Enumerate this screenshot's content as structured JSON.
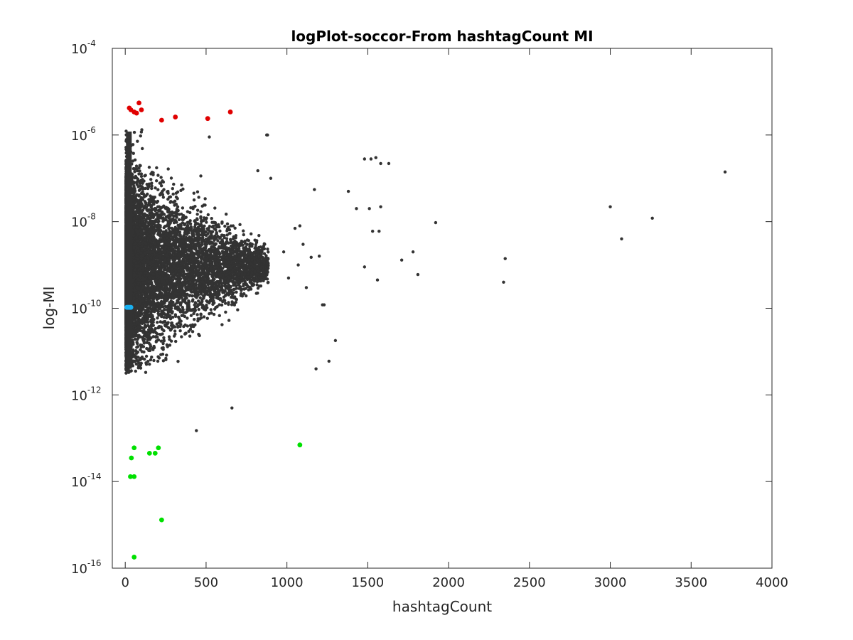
{
  "chart_data": {
    "type": "scatter",
    "title": "logPlot-soccor-From hashtagCount MI",
    "xlabel": "hashtagCount",
    "ylabel": "log-MI",
    "xlim": [
      -80,
      4000
    ],
    "ylim": [
      1e-16,
      0.0001
    ],
    "yscale": "log",
    "grid": false,
    "legend": "none",
    "x_ticks": [
      {
        "value": 0,
        "label": "0"
      },
      {
        "value": 500,
        "label": "500"
      },
      {
        "value": 1000,
        "label": "1000"
      },
      {
        "value": 1500,
        "label": "1500"
      },
      {
        "value": 2000,
        "label": "2000"
      },
      {
        "value": 2500,
        "label": "2500"
      },
      {
        "value": 3000,
        "label": "3000"
      },
      {
        "value": 3500,
        "label": "3500"
      },
      {
        "value": 4000,
        "label": "4000"
      }
    ],
    "y_ticks": [
      {
        "value": 1e-16,
        "base": "10",
        "exp": "-16"
      },
      {
        "value": 1e-14,
        "base": "10",
        "exp": "-14"
      },
      {
        "value": 1e-12,
        "base": "10",
        "exp": "-12"
      },
      {
        "value": 1e-10,
        "base": "10",
        "exp": "-10"
      },
      {
        "value": 1e-08,
        "base": "10",
        "exp": "-8"
      },
      {
        "value": 1e-06,
        "base": "10",
        "exp": "-6"
      },
      {
        "value": 0.0001,
        "base": "10",
        "exp": "-4"
      }
    ],
    "dense_cluster": {
      "color": "#333333",
      "x_range": [
        5,
        900
      ],
      "y_range": [
        3e-12,
        1.5e-06
      ]
    },
    "series": [
      {
        "color": "#333333",
        "marker_size": 2.2,
        "points": [
          [
            875,
            1e-06
          ],
          [
            520,
            9e-07
          ],
          [
            1550,
            3e-07
          ],
          [
            1520,
            2.8e-07
          ],
          [
            1480,
            2.8e-07
          ],
          [
            1580,
            2.2e-07
          ],
          [
            1630,
            2.2e-07
          ],
          [
            3710,
            1.4e-07
          ],
          [
            1170,
            5.5e-08
          ],
          [
            1380,
            5e-08
          ],
          [
            1580,
            2.2e-08
          ],
          [
            1510,
            2e-08
          ],
          [
            1430,
            2e-08
          ],
          [
            3000,
            2.2e-08
          ],
          [
            3260,
            1.2e-08
          ],
          [
            1920,
            9.5e-09
          ],
          [
            3070,
            4e-09
          ],
          [
            1570,
            6e-09
          ],
          [
            1530,
            6e-09
          ],
          [
            1780,
            2e-09
          ],
          [
            2350,
            1.4e-09
          ],
          [
            1710,
            1.3e-09
          ],
          [
            1480,
            9e-10
          ],
          [
            1810,
            6e-10
          ],
          [
            2340,
            4e-10
          ],
          [
            1560,
            4.5e-10
          ],
          [
            1220,
            1.2e-10
          ],
          [
            1300,
            1.8e-11
          ],
          [
            1260,
            6e-12
          ],
          [
            1180,
            4e-12
          ],
          [
            660,
            5e-13
          ],
          [
            440,
            1.5e-13
          ],
          [
            880,
            1e-06
          ],
          [
            900,
            1e-07
          ],
          [
            820,
            1.5e-07
          ],
          [
            1050,
            7e-09
          ],
          [
            1100,
            3e-09
          ],
          [
            980,
            2e-09
          ],
          [
            1150,
            1.5e-09
          ],
          [
            1230,
            1.2e-10
          ],
          [
            1010,
            5e-10
          ],
          [
            1120,
            3e-10
          ],
          [
            1070,
            1e-09
          ],
          [
            1200,
            1.6e-09
          ],
          [
            1080,
            8e-09
          ]
        ]
      },
      {
        "color": "#e00000",
        "marker_size": 3.4,
        "points": [
          [
            25,
            4.2e-06
          ],
          [
            35,
            3.8e-06
          ],
          [
            55,
            3.4e-06
          ],
          [
            70,
            3.2e-06
          ],
          [
            85,
            5.5e-06
          ],
          [
            100,
            3.8e-06
          ],
          [
            225,
            2.2e-06
          ],
          [
            310,
            2.6e-06
          ],
          [
            510,
            2.4e-06
          ],
          [
            650,
            3.4e-06
          ]
        ]
      },
      {
        "color": "#1ab0f0",
        "marker_size": 3.4,
        "points": [
          [
            10,
            1.05e-10
          ],
          [
            15,
            1.05e-10
          ],
          [
            20,
            1.05e-10
          ],
          [
            25,
            1.05e-10
          ],
          [
            30,
            1.05e-10
          ],
          [
            35,
            1.05e-10
          ]
        ]
      },
      {
        "color": "#00e000",
        "marker_size": 3.4,
        "points": [
          [
            55,
            6e-14
          ],
          [
            38,
            3.5e-14
          ],
          [
            150,
            4.5e-14
          ],
          [
            185,
            4.5e-14
          ],
          [
            205,
            6e-14
          ],
          [
            1080,
            7e-14
          ],
          [
            32,
            1.3e-14
          ],
          [
            55,
            1.3e-14
          ],
          [
            225,
            1.3e-15
          ],
          [
            55,
            1.8e-16
          ]
        ]
      }
    ]
  }
}
